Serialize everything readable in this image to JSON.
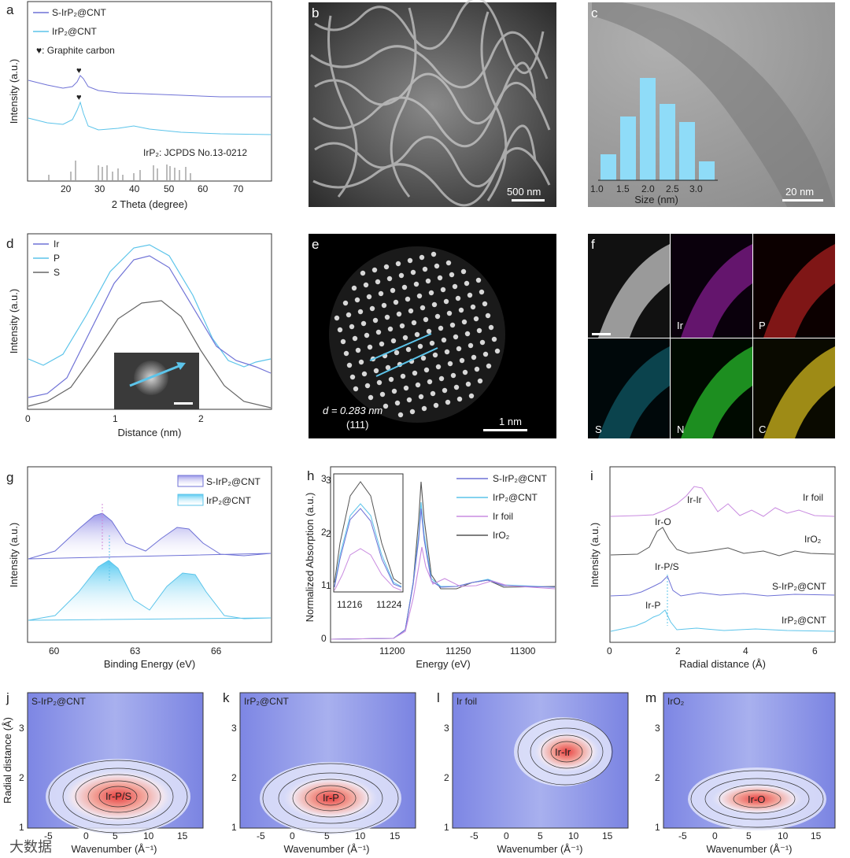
{
  "panels": {
    "a": {
      "letter": "a",
      "legend": [
        "S-IrP₂@CNT",
        "IrP₂@CNT",
        "♥: Graphite carbon"
      ],
      "reference": "IrP₂: JCPDS No.13-0212",
      "xlabel": "2 Theta (degree)",
      "ylabel": "Intensity (a.u.)",
      "xticks": [
        "20",
        "30",
        "40",
        "50",
        "60",
        "70"
      ],
      "colors": {
        "s_irp2": "#6f72d6",
        "irp2": "#5cc4ea"
      }
    },
    "b": {
      "letter": "b",
      "scale_bar": "500 nm"
    },
    "c": {
      "letter": "c",
      "scale_bar": "20 nm",
      "xlabel": "Size (nm)",
      "xticks": [
        "1.0",
        "1.5",
        "2.0",
        "2.5",
        "3.0"
      ]
    },
    "d": {
      "letter": "d",
      "legend": [
        "Ir",
        "P",
        "S"
      ],
      "xlabel": "Distance (nm)",
      "ylabel": "Intensity (a.u.)",
      "xticks": [
        "0",
        "1",
        "2"
      ]
    },
    "e": {
      "letter": "e",
      "d_value": "d = 0.283 nm",
      "plane": "(111)",
      "scale_bar": "1 nm"
    },
    "f": {
      "letter": "f",
      "maps": [
        "Ir",
        "P",
        "S",
        "N",
        "C"
      ]
    },
    "g": {
      "letter": "g",
      "legend": [
        "S-IrP₂@CNT",
        "IrP₂@CNT"
      ],
      "xlabel": "Binding Energy (eV)",
      "ylabel": "Intensity (a.u.)",
      "xticks": [
        "60",
        "63",
        "66"
      ]
    },
    "h": {
      "letter": "h",
      "legend": [
        "S-IrP₂@CNT",
        "IrP₂@CNT",
        "Ir foil",
        "IrO₂"
      ],
      "xlabel": "Energy (eV)",
      "ylabel": "Normalized Absorption (a.u.)",
      "xticks": [
        "11200",
        "11250",
        "11300"
      ],
      "yticks": [
        "0",
        "1",
        "2",
        "3"
      ],
      "inset_xticks": [
        "11216",
        "11224"
      ],
      "inset_yticks": [
        "1",
        "2",
        "3"
      ]
    },
    "i": {
      "letter": "i",
      "labels": [
        "Ir foil",
        "IrO₂",
        "S-IrP₂@CNT",
        "IrP₂@CNT"
      ],
      "peaks": [
        "Ir-Ir",
        "Ir-O",
        "Ir-P/S",
        "Ir-P"
      ],
      "xlabel": "Radial distance (Å)",
      "ylabel": "Intensity (a.u.)",
      "xticks": [
        "0",
        "2",
        "4",
        "6"
      ]
    },
    "j": {
      "letter": "j",
      "sample": "S-IrP₂@CNT",
      "peak": "Ir-P/S",
      "xlabel": "Wavenumber (Å⁻¹)",
      "ylabel": "Radial distance (Å)",
      "xticks": [
        "-5",
        "0",
        "5",
        "10",
        "15"
      ],
      "yticks": [
        "1",
        "2",
        "3"
      ]
    },
    "k": {
      "letter": "k",
      "sample": "IrP₂@CNT",
      "peak": "Ir-P",
      "xlabel": "Wavenumber (Å⁻¹)",
      "xticks": [
        "-5",
        "0",
        "5",
        "10",
        "15"
      ],
      "yticks": [
        "1",
        "2",
        "3"
      ]
    },
    "l": {
      "letter": "l",
      "sample": "Ir foil",
      "peak": "Ir-Ir",
      "xlabel": "Wavenumber (Å⁻¹)",
      "xticks": [
        "-5",
        "0",
        "5",
        "10",
        "15"
      ],
      "yticks": [
        "1",
        "2",
        "3"
      ]
    },
    "m": {
      "letter": "m",
      "sample": "IrO₂",
      "peak": "Ir-O",
      "xlabel": "Wavenumber (Å⁻¹)",
      "xticks": [
        "-5",
        "0",
        "5",
        "10",
        "15"
      ],
      "yticks": [
        "1",
        "2",
        "3"
      ]
    }
  },
  "chart_data": [
    {
      "panel": "c",
      "type": "bar",
      "categories": [
        "1.0",
        "1.25",
        "1.5",
        "1.75",
        "2.0",
        "2.25",
        "2.5",
        "2.75",
        "3.0",
        "3.25"
      ],
      "values": [
        0.24,
        0.0,
        0.6,
        0.0,
        0.9,
        0.0,
        0.68,
        0.0,
        0.53,
        0.17
      ],
      "xlabel": "Size (nm)"
    },
    {
      "panel": "d",
      "type": "line",
      "xlabel": "Distance (nm)",
      "ylabel": "Intensity (a.u.)",
      "series": [
        {
          "name": "Ir",
          "peak_x": 1.45
        },
        {
          "name": "P",
          "peak_x": 1.45
        },
        {
          "name": "S",
          "peak_x": 1.5
        }
      ]
    },
    {
      "panel": "i",
      "type": "line",
      "xlabel": "Radial distance (Å)",
      "ylabel": "Intensity (a.u.)",
      "xlim": [
        0,
        6.5
      ],
      "series": [
        {
          "name": "Ir foil",
          "peak_x": 2.5
        },
        {
          "name": "IrO₂",
          "peak_x": 1.6
        },
        {
          "name": "S-IrP₂@CNT",
          "peak_x": 1.7
        },
        {
          "name": "IrP₂@CNT",
          "peak_x": 1.65
        }
      ]
    }
  ],
  "watermark": "大数据"
}
